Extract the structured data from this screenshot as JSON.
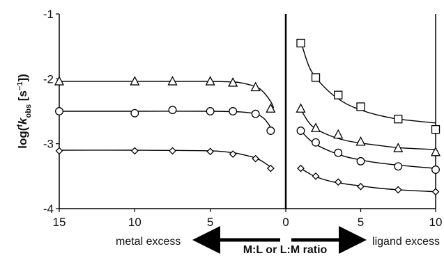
{
  "chart_data": {
    "type": "scatter",
    "ylabel_parts": {
      "prefix": "log(",
      "sup_f": "f",
      "k": "k",
      "sub": "obs",
      "unit_open": " [s",
      "unit_exp": "−1",
      "unit_close": "])"
    },
    "xlabel": "M:L or L:M ratio",
    "annotations": {
      "left": "metal excess",
      "right": "ligand excess"
    },
    "ylim": [
      -4,
      -1
    ],
    "yticks": [
      -1,
      -2,
      -3,
      -4
    ],
    "left_panel": {
      "xlim": [
        15,
        0
      ],
      "xticks": [
        15,
        10,
        5
      ]
    },
    "right_panel": {
      "xlim": [
        0,
        10
      ],
      "xticks": [
        0,
        5,
        10
      ]
    },
    "series": [
      {
        "marker": "square",
        "left": {
          "points": []
        },
        "right": {
          "points": [
            [
              1,
              -1.45
            ],
            [
              2,
              -1.98
            ],
            [
              3.5,
              -2.25
            ],
            [
              5,
              -2.43
            ],
            [
              7.5,
              -2.62
            ],
            [
              10,
              -2.78
            ]
          ],
          "fit": [
            [
              1,
              -1.42
            ],
            [
              1.5,
              -1.78
            ],
            [
              2,
              -1.98
            ],
            [
              3,
              -2.22
            ],
            [
              4,
              -2.38
            ],
            [
              5,
              -2.48
            ],
            [
              6,
              -2.55
            ],
            [
              7.5,
              -2.62
            ],
            [
              10,
              -2.68
            ]
          ]
        }
      },
      {
        "marker": "triangle",
        "left": {
          "points": [
            [
              15,
              -2.04
            ],
            [
              10,
              -2.04
            ],
            [
              7.5,
              -2.04
            ],
            [
              5,
              -2.04
            ],
            [
              3.5,
              -2.06
            ],
            [
              2,
              -2.13
            ],
            [
              1,
              -2.46
            ]
          ],
          "fit": [
            [
              15,
              -2.04
            ],
            [
              10,
              -2.04
            ],
            [
              5,
              -2.04
            ],
            [
              3.5,
              -2.05
            ],
            [
              3,
              -2.06
            ],
            [
              2,
              -2.12
            ],
            [
              1.5,
              -2.2
            ],
            [
              1,
              -2.35
            ],
            [
              0.8,
              -2.45
            ]
          ]
        },
        "right": {
          "points": [
            [
              1,
              -2.46
            ],
            [
              2,
              -2.76
            ],
            [
              3.5,
              -2.86
            ],
            [
              5,
              -2.97
            ],
            [
              7.5,
              -3.07
            ],
            [
              10,
              -3.13
            ]
          ],
          "fit": [
            [
              1,
              -2.47
            ],
            [
              1.5,
              -2.66
            ],
            [
              2,
              -2.77
            ],
            [
              3,
              -2.88
            ],
            [
              4,
              -2.95
            ],
            [
              5,
              -2.99
            ],
            [
              6,
              -3.02
            ],
            [
              7.5,
              -3.06
            ],
            [
              10,
              -3.09
            ]
          ]
        }
      },
      {
        "marker": "circle",
        "left": {
          "points": [
            [
              15,
              -2.5
            ],
            [
              10,
              -2.53
            ],
            [
              7.5,
              -2.48
            ],
            [
              5,
              -2.5
            ],
            [
              3.5,
              -2.5
            ],
            [
              2,
              -2.54
            ],
            [
              1,
              -2.8
            ]
          ],
          "fit": [
            [
              15,
              -2.5
            ],
            [
              10,
              -2.5
            ],
            [
              5,
              -2.5
            ],
            [
              3,
              -2.51
            ],
            [
              2,
              -2.54
            ],
            [
              1.5,
              -2.6
            ],
            [
              1.2,
              -2.68
            ],
            [
              0.9,
              -2.78
            ]
          ]
        },
        "right": {
          "points": [
            [
              1,
              -2.8
            ],
            [
              2,
              -2.98
            ],
            [
              3.5,
              -3.14
            ],
            [
              5,
              -3.27
            ],
            [
              7.5,
              -3.35
            ],
            [
              10,
              -3.4
            ]
          ],
          "fit": [
            [
              1,
              -2.8
            ],
            [
              1.5,
              -2.92
            ],
            [
              2,
              -3.01
            ],
            [
              3,
              -3.12
            ],
            [
              4,
              -3.2
            ],
            [
              5,
              -3.25
            ],
            [
              6,
              -3.29
            ],
            [
              7.5,
              -3.33
            ],
            [
              10,
              -3.38
            ]
          ]
        }
      },
      {
        "marker": "diamond",
        "left": {
          "points": [
            [
              15,
              -3.11
            ],
            [
              10,
              -3.11
            ],
            [
              7.5,
              -3.11
            ],
            [
              5,
              -3.12
            ],
            [
              3.5,
              -3.16
            ],
            [
              2,
              -3.23
            ],
            [
              1,
              -3.38
            ]
          ],
          "fit": [
            [
              15,
              -3.1
            ],
            [
              10,
              -3.1
            ],
            [
              5,
              -3.11
            ],
            [
              3.5,
              -3.14
            ],
            [
              3,
              -3.16
            ],
            [
              2,
              -3.22
            ],
            [
              1.5,
              -3.28
            ],
            [
              1,
              -3.36
            ],
            [
              0.9,
              -3.38
            ]
          ]
        },
        "right": {
          "points": [
            [
              1,
              -3.38
            ],
            [
              2,
              -3.5
            ],
            [
              3.5,
              -3.59
            ],
            [
              5,
              -3.66
            ],
            [
              7.5,
              -3.71
            ],
            [
              10,
              -3.74
            ]
          ],
          "fit": [
            [
              1,
              -3.38
            ],
            [
              1.5,
              -3.45
            ],
            [
              2,
              -3.51
            ],
            [
              3,
              -3.58
            ],
            [
              4,
              -3.62
            ],
            [
              5,
              -3.65
            ],
            [
              6,
              -3.68
            ],
            [
              7.5,
              -3.71
            ],
            [
              10,
              -3.74
            ]
          ]
        }
      }
    ]
  }
}
